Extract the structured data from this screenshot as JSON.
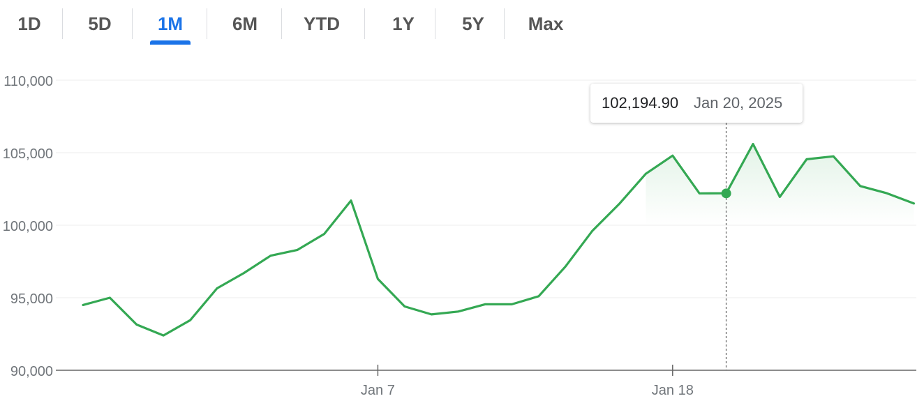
{
  "range_selector": {
    "options": [
      "1D",
      "5D",
      "1M",
      "6M",
      "YTD",
      "1Y",
      "5Y",
      "Max"
    ],
    "selected": "1M"
  },
  "tooltip": {
    "value": "102,194.90",
    "date": "Jan 20, 2025"
  },
  "colors": {
    "line": "#34a853",
    "accent": "#1a73e8"
  },
  "chart_data": {
    "type": "area",
    "title": "",
    "xlabel": "",
    "ylabel": "",
    "x": [
      "Dec 27",
      "Dec 28",
      "Dec 29",
      "Dec 30",
      "Dec 31",
      "Jan 1",
      "Jan 2",
      "Jan 3",
      "Jan 4",
      "Jan 5",
      "Jan 6",
      "Jan 7",
      "Jan 8",
      "Jan 9",
      "Jan 10",
      "Jan 11",
      "Jan 12",
      "Jan 13",
      "Jan 14",
      "Jan 15",
      "Jan 16",
      "Jan 17",
      "Jan 18",
      "Jan 19",
      "Jan 20",
      "Jan 21",
      "Jan 22",
      "Jan 23",
      "Jan 24",
      "Jan 25",
      "Jan 26",
      "Jan 27",
      "Jan 28"
    ],
    "series": [
      {
        "values": [
          94500,
          95000,
          93150,
          92400,
          93450,
          95650,
          96700,
          97900,
          98300,
          99400,
          101700,
          96300,
          94400,
          93850,
          94050,
          94550,
          94550,
          95100,
          97150,
          99600,
          101450,
          103550,
          104800,
          102194.9,
          102200,
          105600,
          101950,
          104550,
          104750,
          102700,
          102200,
          101500,
          null
        ]
      }
    ],
    "ylim": [
      90000,
      110000
    ],
    "y_ticks": [
      "110,000",
      "105,000",
      "100,000",
      "95,000",
      "90,000"
    ],
    "x_tick_labels": [
      "Jan 7",
      "Jan 18"
    ],
    "grid": true,
    "highlight": {
      "x": "Jan 20",
      "value": 102194.9
    }
  }
}
